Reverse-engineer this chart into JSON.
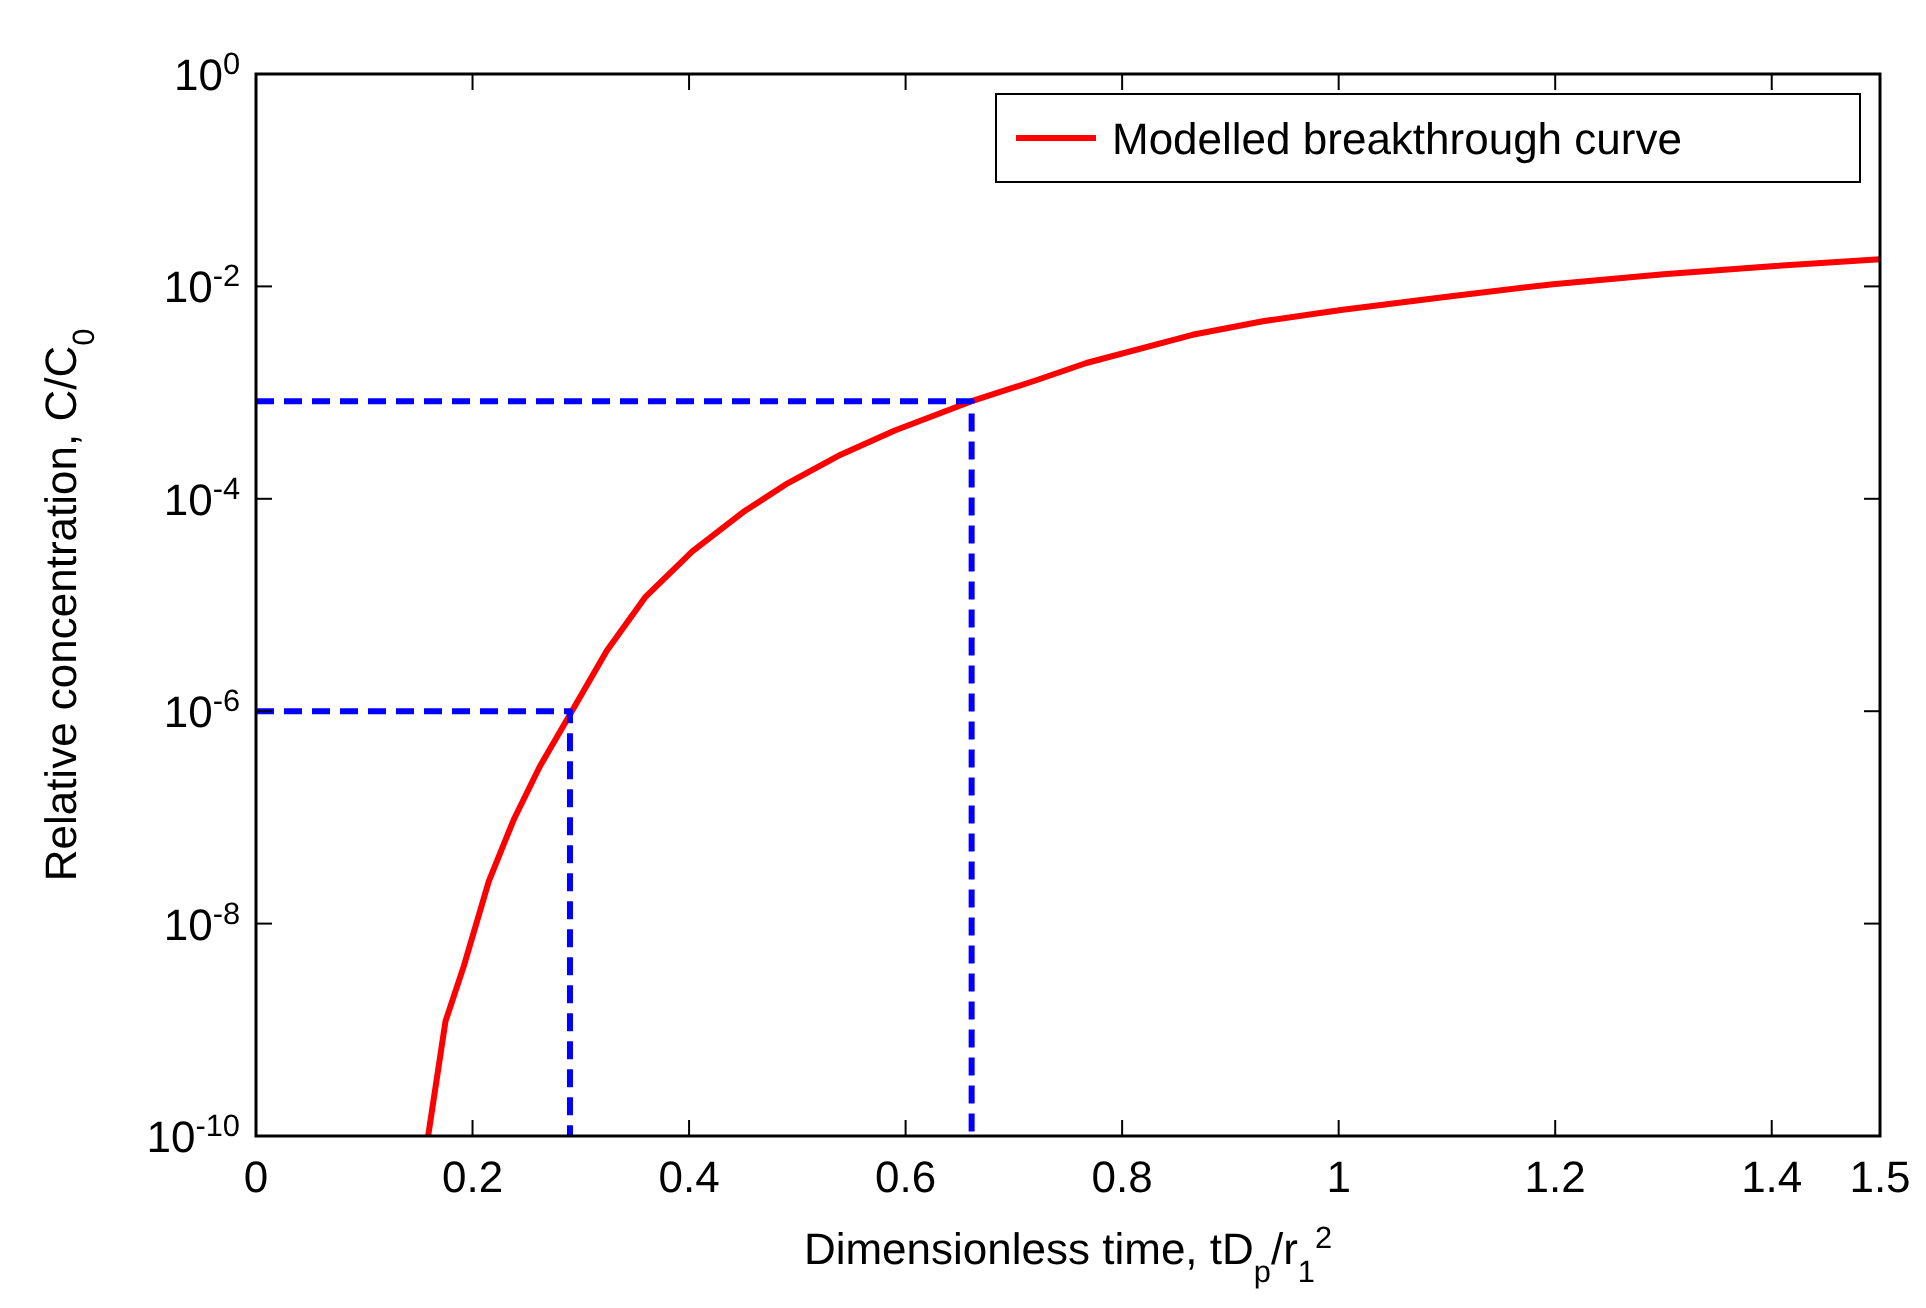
{
  "chart_data": {
    "type": "line",
    "xlabel": "Dimensionless time, tD$_{p}$/r$_{1}$$^{2}$",
    "ylabel": "Relative concentration, C/C$_{0}$",
    "log": "y",
    "xlim": [
      0,
      1.5
    ],
    "xticks": [
      0,
      0.2,
      0.4,
      0.6,
      0.8,
      1,
      1.2,
      1.4,
      1.5
    ],
    "ylim": [
      1e-10,
      1
    ],
    "yticks": [
      {
        "value": 1e-10,
        "label": "10$^{-10}$"
      },
      {
        "value": 1e-08,
        "label": "10$^{-8}$"
      },
      {
        "value": 1e-06,
        "label": "10$^{-6}$"
      },
      {
        "value": 0.0001,
        "label": "10$^{-4}$"
      },
      {
        "value": 0.01,
        "label": "10$^{-2}$"
      },
      {
        "value": 1,
        "label": "10$^{0}$"
      }
    ],
    "grid": false,
    "legend": "top right",
    "series": [
      {
        "name": "Modelled breakthrough curve",
        "color": "#ff0000",
        "line_style": "solid",
        "x": [
          0.159,
          0.175,
          0.192,
          0.215,
          0.238,
          0.262,
          0.29,
          0.324,
          0.36,
          0.403,
          0.45,
          0.491,
          0.54,
          0.59,
          0.661,
          0.72,
          0.767,
          0.865,
          0.93,
          1.002,
          1.1,
          1.198,
          1.3,
          1.4,
          1.5
        ],
        "values": [
          1e-10,
          1.2e-09,
          4e-09,
          2.5e-08,
          9.5e-08,
          3e-07,
          9.3e-07,
          3.7e-06,
          1.2e-05,
          3.2e-05,
          7.5e-05,
          0.00014,
          0.00026,
          0.00044,
          0.00083,
          0.0013,
          0.0019,
          0.0035,
          0.0047,
          0.006,
          0.008,
          0.0105,
          0.013,
          0.0155,
          0.018
        ]
      },
      {
        "color": "#0000ff",
        "line_style": "dashed",
        "x": [
          0,
          0.29,
          0.29
        ],
        "values": [
          1e-06,
          1e-06,
          1e-10
        ]
      },
      {
        "color": "#0000ff",
        "line_style": "dashed",
        "x": [
          0,
          0.661,
          0.661
        ],
        "values": [
          0.00083,
          0.00083,
          1e-10
        ]
      }
    ]
  }
}
